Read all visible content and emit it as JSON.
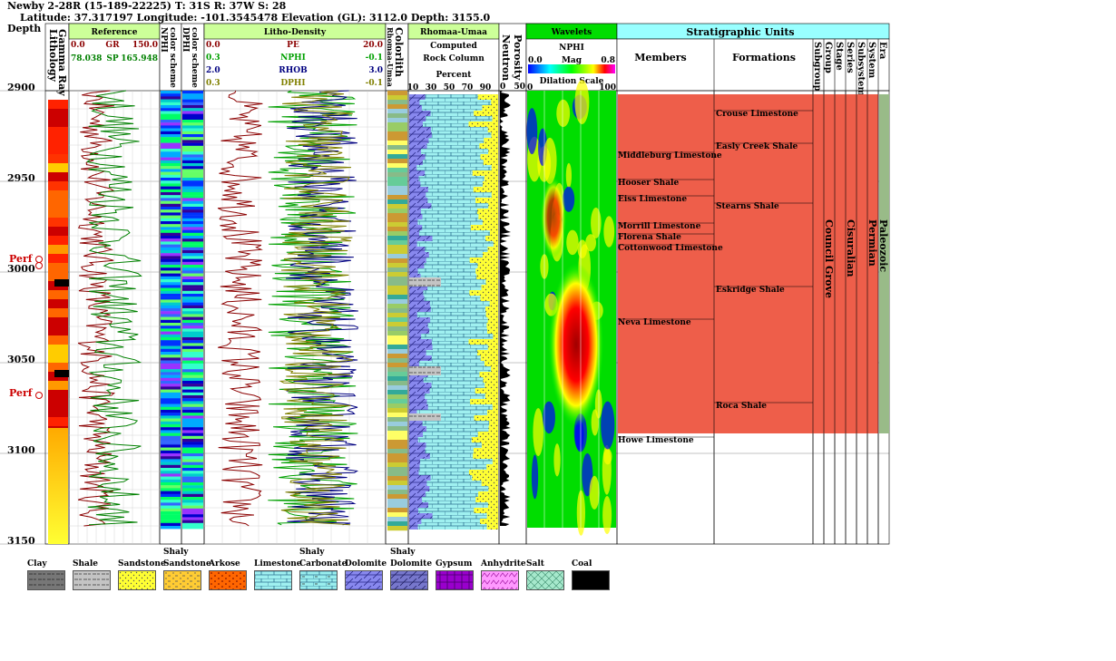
{
  "header": {
    "line1": "Newby 2-28R (15-189-22225) T: 31S R: 37W S: 28",
    "line2": "Latitude: 37.317197 Longitude: -101.3545478 Elevation (GL): 3112.0 Depth: 3155.0"
  },
  "depth": {
    "title": "Depth",
    "ticks": [
      "2900",
      "2950",
      "3000",
      "3050",
      "3100",
      "3150"
    ],
    "perf_label": "Perf"
  },
  "tracks": {
    "lithology": "Lithology",
    "gamma": "Gamma Ray",
    "reference": {
      "title": "Reference",
      "gr": {
        "min": "0.0",
        "name": "GR",
        "max": "150.0"
      },
      "sp": {
        "min": "78.038",
        "name": "SP",
        "max": "165.948"
      }
    },
    "nphi_color": {
      "name": "NPHI",
      "sub": "color scheme"
    },
    "dphi_color": {
      "name": "DPHI",
      "sub": "color scheme"
    },
    "rhomaa_color": {
      "name": "Rhomaa-Umaa",
      "sub": "color scheme"
    },
    "litho": {
      "title": "Litho-Density",
      "pe": {
        "min": "0.0",
        "name": "PE",
        "max": "20.0"
      },
      "nphi": {
        "min": "0.3",
        "name": "NPHI",
        "max": "-0.1"
      },
      "rhob": {
        "min": "2.0",
        "name": "RHOB",
        "max": "3.0"
      },
      "dphi": {
        "min": "0.3",
        "name": "DPHI",
        "max": "-0.1"
      }
    },
    "colorlith": {
      "name": "Colorlith",
      "sub": "Rhomaa-Umaa"
    },
    "rock": {
      "title": "Rhomaa-Umaa",
      "sub1": "Computed",
      "sub2": "Rock Column",
      "sub3": "Percent",
      "ticks": [
        "10",
        "30",
        "50",
        "70",
        "90"
      ]
    },
    "neutron": {
      "name": "Neutron",
      "sub": "Porosity",
      "min": "0",
      "max": "50"
    },
    "wavelets": {
      "title": "Wavelets",
      "curve": "NPHI",
      "min": "0.0",
      "mag": "Mag",
      "max": "0.8",
      "dilation": "Dilation Scale",
      "dmin": "0",
      "dmax": "100"
    }
  },
  "strat": {
    "title": "Stratigraphic Units",
    "members_title": "Members",
    "formations_title": "Formations",
    "cols": [
      "Subgroup",
      "Group",
      "Stage",
      "Series",
      "Subsystem",
      "System",
      "Era"
    ],
    "members": [
      "Middleburg Limestone",
      "Hooser Shale",
      "Eiss Limestone",
      "Morrill Limestone",
      "Florena Shale",
      "Cottonwood Limestone",
      "Neva Limestone",
      "Howe Limestone"
    ],
    "formations": [
      "Crouse Limestone",
      "Easly Creek Shale",
      "Stearns Shale",
      "Eskridge Shale",
      "Roca Shale"
    ],
    "group": "Council Grove",
    "series": "Cisuralian",
    "system": "Permian",
    "era": "Paleozoic"
  },
  "legend": [
    {
      "name": "Clay",
      "name2": ""
    },
    {
      "name": "Shale",
      "name2": ""
    },
    {
      "name": "Sandstone",
      "name2": ""
    },
    {
      "name": "Shaly",
      "name2": "Sandstone"
    },
    {
      "name": "Arkose",
      "name2": ""
    },
    {
      "name": "Limestone",
      "name2": ""
    },
    {
      "name": "Shaly",
      "name2": "Carbonate"
    },
    {
      "name": "Dolomite",
      "name2": ""
    },
    {
      "name": "Shaly",
      "name2": "Dolomite"
    },
    {
      "name": "Gypsum",
      "name2": ""
    },
    {
      "name": "Anhydrite",
      "name2": ""
    },
    {
      "name": "Salt",
      "name2": ""
    },
    {
      "name": "Coal",
      "name2": ""
    }
  ],
  "colors": {
    "header_green": "#ccff99",
    "strat_header": "#99ffff",
    "strat_fill": "#ee5e4a",
    "gr_curve": "#8b0000",
    "sp_curve": "#008000",
    "nphi_curve": "#00a000",
    "rhob_curve": "#000080",
    "dphi_curve": "#808000",
    "perf": "#cc0000"
  }
}
